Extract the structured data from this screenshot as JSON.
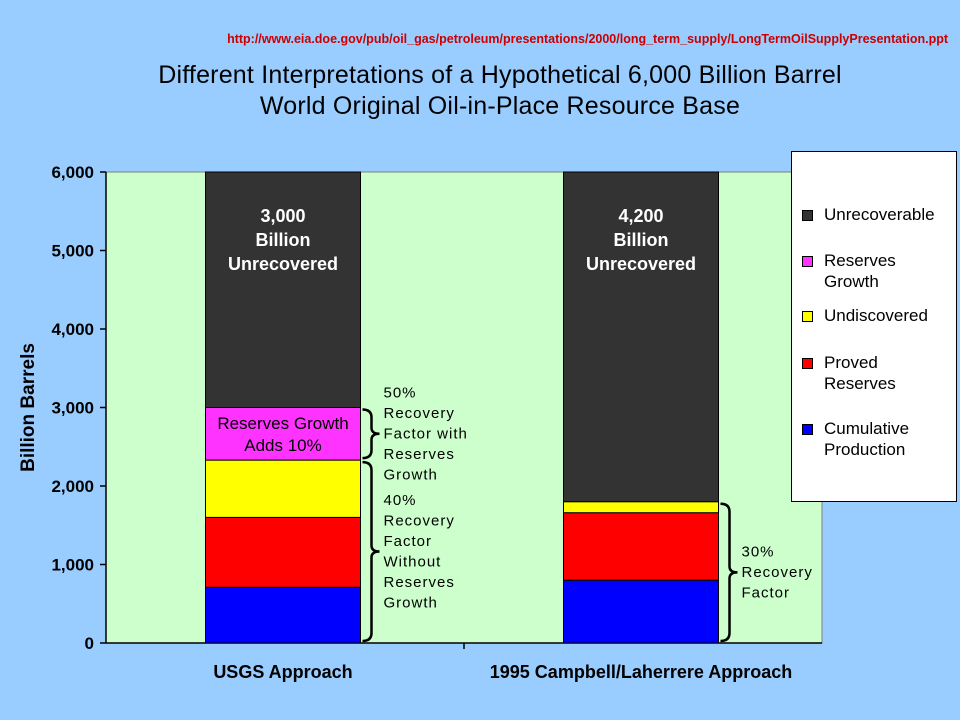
{
  "header": {
    "source_url": "http://www.eia.doe.gov/pub/oil_gas/petroleum/presentations/2000/long_term_supply/LongTermOilSupplyPresentation.ppt",
    "title_line1": "Different Interpretations of a Hypothetical 6,000 Billion Barrel",
    "title_line2": "World Original Oil-in-Place Resource Base"
  },
  "colors": {
    "plot_background": "#ccffcc",
    "page_background": "#99ccff",
    "unrecoverable": "#333333",
    "reserves_growth": "#ff33ff",
    "undiscovered": "#ffff00",
    "proved_reserves": "#ff0000",
    "cumulative_production": "#0000ff"
  },
  "chart_data": {
    "type": "bar",
    "stacked": true,
    "categories": [
      "USGS Approach",
      "1995 Campbell/Laherrere Approach"
    ],
    "series": [
      {
        "name": "Cumulative Production",
        "color_key": "cumulative_production",
        "values": [
          710,
          800
        ]
      },
      {
        "name": "Proved Reserves",
        "color_key": "proved_reserves",
        "values": [
          890,
          860
        ]
      },
      {
        "name": "Undiscovered",
        "color_key": "undiscovered",
        "values": [
          730,
          140
        ]
      },
      {
        "name": "Reserves Growth",
        "color_key": "reserves_growth",
        "values": [
          670,
          0
        ]
      },
      {
        "name": "Unrecoverable",
        "color_key": "unrecoverable",
        "values": [
          3000,
          4200
        ]
      }
    ],
    "ylabel": "Billion Barrels",
    "ylim": [
      0,
      6000
    ],
    "yticks": [
      0,
      1000,
      2000,
      3000,
      4000,
      5000,
      6000
    ],
    "ytick_labels": [
      "0",
      "1,000",
      "2,000",
      "3,000",
      "4,000",
      "5,000",
      "6,000"
    ],
    "grid": false,
    "legend_position": "right",
    "legend": [
      "Unrecoverable",
      "Reserves Growth",
      "Undiscovered",
      "Proved Reserves",
      "Cumulative Production"
    ],
    "bar_annotations": [
      {
        "category": 0,
        "y_from": 3000,
        "y_to": 6000,
        "lines": [
          "3,000",
          "Billion",
          "Unrecovered"
        ],
        "color": "#ffffff",
        "bold": true
      },
      {
        "category": 1,
        "y_from": 1800,
        "y_to": 6000,
        "lines": [
          "4,200",
          "Billion",
          "Unrecovered"
        ],
        "color": "#ffffff",
        "bold": true
      },
      {
        "category": 0,
        "y_from": 2330,
        "y_to": 3000,
        "lines": [
          "Reserves Growth",
          "Adds 10%"
        ],
        "color": "#000000",
        "bold": false
      }
    ],
    "brace_annotations": [
      {
        "category": 0,
        "y_from": 2330,
        "y_to": 3000,
        "lines": [
          "50%",
          "Recovery",
          "Factor with",
          "Reserves",
          "Growth"
        ]
      },
      {
        "category": 0,
        "y_from": 0,
        "y_to": 2330,
        "lines": [
          "40%",
          "Recovery",
          "Factor",
          "Without",
          "Reserves",
          "Growth"
        ]
      },
      {
        "category": 1,
        "y_from": 0,
        "y_to": 1800,
        "lines": [
          "30%",
          "Recovery",
          "Factor"
        ]
      }
    ]
  }
}
